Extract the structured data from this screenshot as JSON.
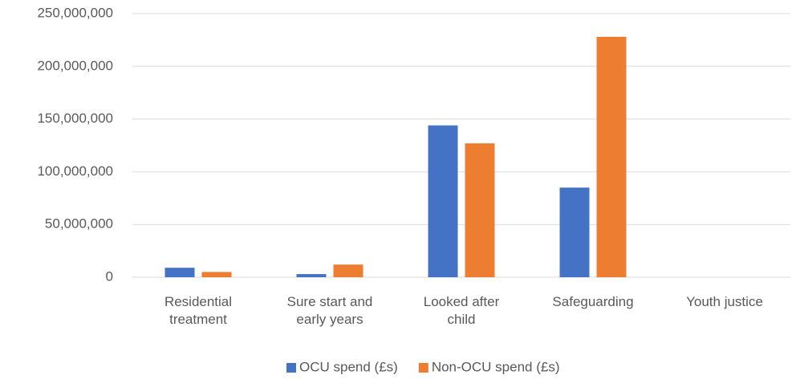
{
  "chart_data": {
    "type": "bar",
    "categories": [
      "Residential treatment",
      "Sure start and early years",
      "Looked after child",
      "Safeguarding",
      "Youth justice"
    ],
    "series": [
      {
        "name": "OCU spend (£s)",
        "color": "#4472c4",
        "values": [
          9000000,
          3000000,
          144000000,
          85000000,
          0
        ]
      },
      {
        "name": "Non-OCU spend (£s)",
        "color": "#ed7d31",
        "values": [
          5000000,
          12000000,
          127000000,
          228000000,
          0
        ]
      }
    ],
    "ylim": [
      0,
      250000000
    ],
    "yticks": [
      {
        "value": 0,
        "label": "0"
      },
      {
        "value": 50000000,
        "label": "50,000,000"
      },
      {
        "value": 100000000,
        "label": "100,000,000"
      },
      {
        "value": 150000000,
        "label": "150,000,000"
      },
      {
        "value": 200000000,
        "label": "200,000,000"
      },
      {
        "value": 250000000,
        "label": "250,000,000"
      }
    ],
    "grid": true,
    "legend": "bottom"
  }
}
